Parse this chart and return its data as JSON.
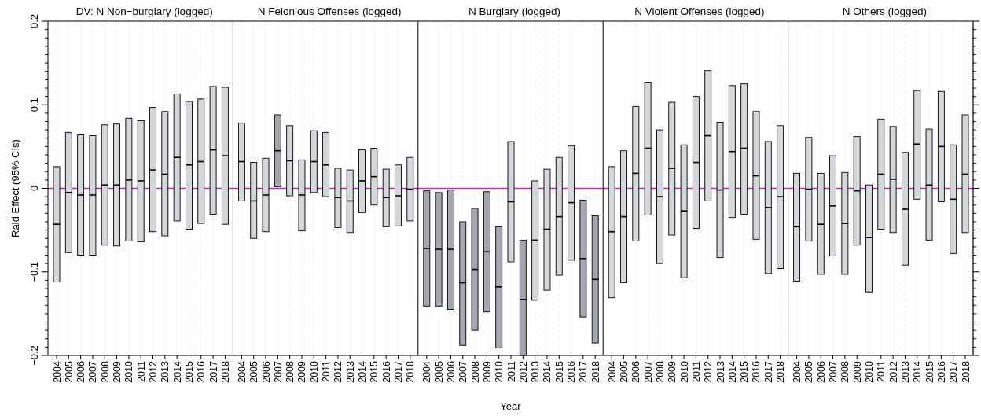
{
  "chart_data": [
    {
      "type": "box",
      "title": "DV: N Non−burglary (logged)",
      "ylabel": "Raid Effect (95% CIs)",
      "categories": [
        "2004",
        "2005",
        "2006",
        "2007",
        "2008",
        "2009",
        "2010",
        "2011",
        "2012",
        "2013",
        "2014",
        "2015",
        "2016",
        "2017",
        "2018"
      ],
      "ylim": [
        -0.2,
        0.2
      ],
      "yticks": [
        {
          "value": -0.2,
          "label": "−0.2"
        },
        {
          "value": -0.19,
          "label": null
        },
        {
          "value": -0.18,
          "label": null
        },
        {
          "value": -0.17,
          "label": null
        },
        {
          "value": -0.16,
          "label": null
        },
        {
          "value": -0.15,
          "label": null
        },
        {
          "value": -0.14,
          "label": null
        },
        {
          "value": -0.13,
          "label": null
        },
        {
          "value": -0.12,
          "label": null
        },
        {
          "value": -0.11,
          "label": null
        },
        {
          "value": -0.1,
          "label": "−0.1"
        },
        {
          "value": -0.09,
          "label": null
        },
        {
          "value": -0.08,
          "label": null
        },
        {
          "value": -0.07,
          "label": null
        },
        {
          "value": -0.06,
          "label": null
        },
        {
          "value": -0.05,
          "label": null
        },
        {
          "value": -0.04,
          "label": null
        },
        {
          "value": -0.03,
          "label": null
        },
        {
          "value": -0.02,
          "label": null
        },
        {
          "value": -0.01,
          "label": null
        },
        0,
        {
          "value": 0.01,
          "label": null
        },
        {
          "value": 0.02,
          "label": null
        },
        {
          "value": 0.03,
          "label": null
        },
        {
          "value": 0.04,
          "label": null
        },
        {
          "value": 0.05,
          "label": null
        },
        {
          "value": 0.06,
          "label": null
        },
        {
          "value": 0.07,
          "label": null
        },
        {
          "value": 0.08,
          "label": null
        },
        {
          "value": 0.09,
          "label": null
        },
        0.1,
        {
          "value": 0.11,
          "label": null
        },
        {
          "value": 0.12,
          "label": null
        },
        {
          "value": 0.13,
          "label": null
        },
        {
          "value": 0.14,
          "label": null
        },
        {
          "value": 0.15,
          "label": null
        },
        {
          "value": 0.16,
          "label": null
        },
        {
          "value": 0.17,
          "label": null
        },
        {
          "value": 0.18,
          "label": null
        },
        {
          "value": 0.19,
          "label": null
        },
        0.2
      ],
      "grid": "x",
      "ref_lines": [
        {
          "axis": "y",
          "value": 0,
          "color": "#ff00ff"
        }
      ],
      "colors": [
        "#d3d6da",
        "#d3d6da",
        "#d3d6da",
        "#d3d6da",
        "#d3d6da",
        "#d3d6da",
        "#d3d6da",
        "#d3d6da",
        "#d3d6da",
        "#d3d6da",
        "#d3d6da",
        "#d3d6da",
        "#d3d6da",
        "#d3d6da",
        "#d3d6da"
      ],
      "boxes": [
        {
          "low": -0.112,
          "q1": -0.112,
          "median": -0.043,
          "q3": 0.026,
          "high": 0.026
        },
        {
          "low": -0.077,
          "q1": -0.077,
          "median": -0.005,
          "q3": 0.067,
          "high": 0.067
        },
        {
          "low": -0.08,
          "q1": -0.08,
          "median": -0.008,
          "q3": 0.064,
          "high": 0.064
        },
        {
          "low": -0.08,
          "q1": -0.08,
          "median": -0.008,
          "q3": 0.063,
          "high": 0.063
        },
        {
          "low": -0.068,
          "q1": -0.068,
          "median": 0.004,
          "q3": 0.076,
          "high": 0.076
        },
        {
          "low": -0.069,
          "q1": -0.069,
          "median": 0.004,
          "q3": 0.077,
          "high": 0.077
        },
        {
          "low": -0.063,
          "q1": -0.063,
          "median": 0.01,
          "q3": 0.084,
          "high": 0.084
        },
        {
          "low": -0.064,
          "q1": -0.064,
          "median": 0.009,
          "q3": 0.081,
          "high": 0.081
        },
        {
          "low": -0.052,
          "q1": -0.052,
          "median": 0.022,
          "q3": 0.097,
          "high": 0.097
        },
        {
          "low": -0.057,
          "q1": -0.057,
          "median": 0.017,
          "q3": 0.092,
          "high": 0.092
        },
        {
          "low": -0.039,
          "q1": -0.039,
          "median": 0.037,
          "q3": 0.113,
          "high": 0.113
        },
        {
          "low": -0.049,
          "q1": -0.049,
          "median": 0.028,
          "q3": 0.104,
          "high": 0.104
        },
        {
          "low": -0.042,
          "q1": -0.042,
          "median": 0.032,
          "q3": 0.107,
          "high": 0.107
        },
        {
          "low": -0.031,
          "q1": -0.031,
          "median": 0.046,
          "q3": 0.122,
          "high": 0.122
        },
        {
          "low": -0.043,
          "q1": -0.043,
          "median": 0.039,
          "q3": 0.121,
          "high": 0.121
        }
      ]
    },
    {
      "type": "box",
      "title": "N Felonious Offenses (logged)",
      "categories": [
        "2004",
        "2005",
        "2006",
        "2007",
        "2008",
        "2009",
        "2010",
        "2011",
        "2012",
        "2013",
        "2014",
        "2015",
        "2016",
        "2017",
        "2018"
      ],
      "ylim": [
        -0.2,
        0.2
      ],
      "tick_labels": "x",
      "grid": "x",
      "ref_lines": [
        {
          "axis": "y",
          "value": 0,
          "color": "#ff00ff"
        }
      ],
      "colors": [
        "#d3d6da",
        "#d3d6da",
        "#d3d6da",
        "#a3a8b0",
        "#d3d6da",
        "#d3d6da",
        "#d3d6da",
        "#d3d6da",
        "#d3d6da",
        "#d3d6da",
        "#d3d6da",
        "#d3d6da",
        "#d3d6da",
        "#d3d6da",
        "#d3d6da"
      ],
      "boxes": [
        {
          "low": -0.015,
          "q1": -0.015,
          "median": 0.032,
          "q3": 0.078,
          "high": 0.078
        },
        {
          "low": -0.06,
          "q1": -0.06,
          "median": -0.015,
          "q3": 0.031,
          "high": 0.031
        },
        {
          "low": -0.052,
          "q1": -0.052,
          "median": -0.008,
          "q3": 0.036,
          "high": 0.036
        },
        {
          "low": 0.002,
          "q1": 0.002,
          "median": 0.045,
          "q3": 0.088,
          "high": 0.088
        },
        {
          "low": -0.009,
          "q1": -0.009,
          "median": 0.033,
          "q3": 0.075,
          "high": 0.075
        },
        {
          "low": -0.051,
          "q1": -0.051,
          "median": -0.008,
          "q3": 0.034,
          "high": 0.034
        },
        {
          "low": -0.005,
          "q1": -0.005,
          "median": 0.032,
          "q3": 0.069,
          "high": 0.069
        },
        {
          "low": -0.01,
          "q1": -0.01,
          "median": 0.028,
          "q3": 0.067,
          "high": 0.067
        },
        {
          "low": -0.047,
          "q1": -0.047,
          "median": -0.011,
          "q3": 0.024,
          "high": 0.024
        },
        {
          "low": -0.053,
          "q1": -0.053,
          "median": -0.015,
          "q3": 0.022,
          "high": 0.022
        },
        {
          "low": -0.029,
          "q1": -0.029,
          "median": 0.009,
          "q3": 0.046,
          "high": 0.046
        },
        {
          "low": -0.02,
          "q1": -0.02,
          "median": 0.014,
          "q3": 0.048,
          "high": 0.048
        },
        {
          "low": -0.046,
          "q1": -0.046,
          "median": -0.011,
          "q3": 0.023,
          "high": 0.023
        },
        {
          "low": -0.045,
          "q1": -0.045,
          "median": -0.009,
          "q3": 0.028,
          "high": 0.028
        },
        {
          "low": -0.039,
          "q1": -0.039,
          "median": -0.001,
          "q3": 0.037,
          "high": 0.037
        }
      ]
    },
    {
      "type": "box",
      "title": "N Burglary (logged)",
      "xlabel": "Year",
      "categories": [
        "2004",
        "2005",
        "2006",
        "2007",
        "2008",
        "2009",
        "2010",
        "2011",
        "2012",
        "2013",
        "2014",
        "2015",
        "2016",
        "2017",
        "2018"
      ],
      "ylim": [
        -0.2,
        0.2
      ],
      "tick_labels": "x",
      "grid": "x",
      "ref_lines": [
        {
          "axis": "y",
          "value": 0,
          "color": "#ff00ff"
        }
      ],
      "colors": [
        "#a3a8b0",
        "#a3a8b0",
        "#a3a8b0",
        "#a3a8b0",
        "#a3a8b0",
        "#a3a8b0",
        "#a3a8b0",
        "#d3d6da",
        "#a3a8b0",
        "#d3d6da",
        "#d3d6da",
        "#d3d6da",
        "#d3d6da",
        "#a3a8b0",
        "#a3a8b0"
      ],
      "boxes": [
        {
          "low": -0.141,
          "q1": -0.141,
          "median": -0.072,
          "q3": -0.003,
          "high": -0.003
        },
        {
          "low": -0.141,
          "q1": -0.141,
          "median": -0.073,
          "q3": -0.005,
          "high": -0.005
        },
        {
          "low": -0.145,
          "q1": -0.145,
          "median": -0.073,
          "q3": -0.002,
          "high": -0.002
        },
        {
          "low": -0.188,
          "q1": -0.188,
          "median": -0.113,
          "q3": -0.04,
          "high": -0.04
        },
        {
          "low": -0.17,
          "q1": -0.17,
          "median": -0.097,
          "q3": -0.024,
          "high": -0.024
        },
        {
          "low": -0.148,
          "q1": -0.148,
          "median": -0.076,
          "q3": -0.004,
          "high": -0.004
        },
        {
          "low": -0.191,
          "q1": -0.191,
          "median": -0.118,
          "q3": -0.046,
          "high": -0.046
        },
        {
          "low": -0.088,
          "q1": -0.088,
          "median": -0.016,
          "q3": 0.056,
          "high": 0.056
        },
        {
          "low": -0.2,
          "q1": -0.2,
          "median": -0.133,
          "q3": -0.062,
          "high": -0.062
        },
        {
          "low": -0.134,
          "q1": -0.134,
          "median": -0.062,
          "q3": 0.009,
          "high": 0.009
        },
        {
          "low": -0.122,
          "q1": -0.122,
          "median": -0.049,
          "q3": 0.023,
          "high": 0.023
        },
        {
          "low": -0.104,
          "q1": -0.104,
          "median": -0.034,
          "q3": 0.037,
          "high": 0.037
        },
        {
          "low": -0.086,
          "q1": -0.086,
          "median": -0.017,
          "q3": 0.051,
          "high": 0.051
        },
        {
          "low": -0.154,
          "q1": -0.154,
          "median": -0.084,
          "q3": -0.014,
          "high": -0.014
        },
        {
          "low": -0.185,
          "q1": -0.185,
          "median": -0.109,
          "q3": -0.033,
          "high": -0.033
        }
      ]
    },
    {
      "type": "box",
      "title": "N Violent Offenses (logged)",
      "categories": [
        "2004",
        "2005",
        "2006",
        "2007",
        "2008",
        "2009",
        "2010",
        "2011",
        "2012",
        "2013",
        "2014",
        "2015",
        "2016",
        "2017",
        "2018"
      ],
      "ylim": [
        -0.2,
        0.2
      ],
      "tick_labels": "x",
      "grid": "x",
      "ref_lines": [
        {
          "axis": "y",
          "value": 0,
          "color": "#ff00ff"
        }
      ],
      "colors": [
        "#d3d6da",
        "#d3d6da",
        "#d3d6da",
        "#d3d6da",
        "#d3d6da",
        "#d3d6da",
        "#d3d6da",
        "#d3d6da",
        "#d3d6da",
        "#d3d6da",
        "#d3d6da",
        "#d3d6da",
        "#d3d6da",
        "#d3d6da",
        "#d3d6da"
      ],
      "boxes": [
        {
          "low": -0.131,
          "q1": -0.131,
          "median": -0.052,
          "q3": 0.026,
          "high": 0.026
        },
        {
          "low": -0.113,
          "q1": -0.113,
          "median": -0.034,
          "q3": 0.045,
          "high": 0.045
        },
        {
          "low": -0.063,
          "q1": -0.063,
          "median": 0.018,
          "q3": 0.098,
          "high": 0.098
        },
        {
          "low": -0.032,
          "q1": -0.032,
          "median": 0.048,
          "q3": 0.127,
          "high": 0.127
        },
        {
          "low": -0.09,
          "q1": -0.09,
          "median": -0.01,
          "q3": 0.07,
          "high": 0.07
        },
        {
          "low": -0.056,
          "q1": -0.056,
          "median": 0.024,
          "q3": 0.103,
          "high": 0.103
        },
        {
          "low": -0.107,
          "q1": -0.107,
          "median": -0.027,
          "q3": 0.052,
          "high": 0.052
        },
        {
          "low": -0.048,
          "q1": -0.048,
          "median": 0.031,
          "q3": 0.11,
          "high": 0.11
        },
        {
          "low": -0.015,
          "q1": -0.015,
          "median": 0.063,
          "q3": 0.141,
          "high": 0.141
        },
        {
          "low": -0.083,
          "q1": -0.083,
          "median": -0.002,
          "q3": 0.079,
          "high": 0.079
        },
        {
          "low": -0.035,
          "q1": -0.035,
          "median": 0.044,
          "q3": 0.123,
          "high": 0.123
        },
        {
          "low": -0.031,
          "q1": -0.031,
          "median": 0.048,
          "q3": 0.125,
          "high": 0.125
        },
        {
          "low": -0.061,
          "q1": -0.061,
          "median": 0.015,
          "q3": 0.092,
          "high": 0.092
        },
        {
          "low": -0.102,
          "q1": -0.102,
          "median": -0.023,
          "q3": 0.056,
          "high": 0.056
        },
        {
          "low": -0.096,
          "q1": -0.096,
          "median": -0.01,
          "q3": 0.075,
          "high": 0.075
        }
      ]
    },
    {
      "type": "box",
      "title": "N Others (logged)",
      "categories": [
        "2004",
        "2005",
        "2006",
        "2007",
        "2008",
        "2009",
        "2010",
        "2011",
        "2012",
        "2013",
        "2014",
        "2015",
        "2016",
        "2017",
        "2018"
      ],
      "ylim": [
        -0.2,
        0.2
      ],
      "tick_labels": "x",
      "yticks": [
        {
          "value": -0.2,
          "label": null
        },
        {
          "value": -0.19,
          "label": null
        },
        {
          "value": -0.18,
          "label": null
        },
        {
          "value": -0.17,
          "label": null
        },
        {
          "value": -0.16,
          "label": null
        },
        {
          "value": -0.15,
          "label": null
        },
        {
          "value": -0.14,
          "label": null
        },
        {
          "value": -0.13,
          "label": null
        },
        {
          "value": -0.12,
          "label": null
        },
        {
          "value": -0.11,
          "label": null
        },
        {
          "value": -0.1,
          "label": null
        },
        {
          "value": -0.09,
          "label": null
        },
        {
          "value": -0.08,
          "label": null
        },
        {
          "value": -0.07,
          "label": null
        },
        {
          "value": -0.06,
          "label": null
        },
        {
          "value": -0.05,
          "label": null
        },
        {
          "value": -0.04,
          "label": null
        },
        {
          "value": -0.03,
          "label": null
        },
        {
          "value": -0.02,
          "label": null
        },
        {
          "value": -0.01,
          "label": null
        },
        {
          "value": 0,
          "label": null
        },
        {
          "value": 0.01,
          "label": null
        },
        {
          "value": 0.02,
          "label": null
        },
        {
          "value": 0.03,
          "label": null
        },
        {
          "value": 0.04,
          "label": null
        },
        {
          "value": 0.05,
          "label": null
        },
        {
          "value": 0.06,
          "label": null
        },
        {
          "value": 0.07,
          "label": null
        },
        {
          "value": 0.08,
          "label": null
        },
        {
          "value": 0.09,
          "label": null
        },
        {
          "value": 0.1,
          "label": null
        },
        {
          "value": 0.11,
          "label": null
        },
        {
          "value": 0.12,
          "label": null
        },
        {
          "value": 0.13,
          "label": null
        },
        {
          "value": 0.14,
          "label": null
        },
        {
          "value": 0.15,
          "label": null
        },
        {
          "value": 0.16,
          "label": null
        },
        {
          "value": 0.17,
          "label": null
        },
        {
          "value": 0.18,
          "label": null
        },
        {
          "value": 0.19,
          "label": null
        },
        {
          "value": 0.2,
          "label": null
        }
      ],
      "grid": "x",
      "ref_lines": [
        {
          "axis": "y",
          "value": 0,
          "color": "#ff00ff"
        }
      ],
      "colors": [
        "#d3d6da",
        "#d3d6da",
        "#d3d6da",
        "#d3d6da",
        "#d3d6da",
        "#d3d6da",
        "#d3d6da",
        "#d3d6da",
        "#d3d6da",
        "#d3d6da",
        "#d3d6da",
        "#d3d6da",
        "#d3d6da",
        "#d3d6da",
        "#d3d6da"
      ],
      "boxes": [
        {
          "low": -0.111,
          "q1": -0.111,
          "median": -0.046,
          "q3": 0.018,
          "high": 0.018
        },
        {
          "low": -0.063,
          "q1": -0.063,
          "median": -0.001,
          "q3": 0.061,
          "high": 0.061
        },
        {
          "low": -0.103,
          "q1": -0.103,
          "median": -0.043,
          "q3": 0.018,
          "high": 0.018
        },
        {
          "low": -0.081,
          "q1": -0.081,
          "median": -0.021,
          "q3": 0.039,
          "high": 0.039
        },
        {
          "low": -0.103,
          "q1": -0.103,
          "median": -0.042,
          "q3": 0.019,
          "high": 0.019
        },
        {
          "low": -0.068,
          "q1": -0.068,
          "median": -0.003,
          "q3": 0.062,
          "high": 0.062
        },
        {
          "low": -0.124,
          "q1": -0.124,
          "median": -0.059,
          "q3": 0.004,
          "high": 0.004
        },
        {
          "low": -0.049,
          "q1": -0.049,
          "median": 0.017,
          "q3": 0.083,
          "high": 0.083
        },
        {
          "low": -0.053,
          "q1": -0.053,
          "median": 0.011,
          "q3": 0.074,
          "high": 0.074
        },
        {
          "low": -0.092,
          "q1": -0.092,
          "median": -0.025,
          "q3": 0.043,
          "high": 0.043
        },
        {
          "low": -0.013,
          "q1": -0.013,
          "median": 0.053,
          "q3": 0.117,
          "high": 0.117
        },
        {
          "low": -0.062,
          "q1": -0.062,
          "median": 0.004,
          "q3": 0.071,
          "high": 0.071
        },
        {
          "low": -0.016,
          "q1": -0.016,
          "median": 0.05,
          "q3": 0.116,
          "high": 0.116
        },
        {
          "low": -0.078,
          "q1": -0.078,
          "median": -0.013,
          "q3": 0.052,
          "high": 0.052
        },
        {
          "low": -0.053,
          "q1": -0.053,
          "median": 0.017,
          "q3": 0.088,
          "high": 0.088
        }
      ]
    }
  ]
}
